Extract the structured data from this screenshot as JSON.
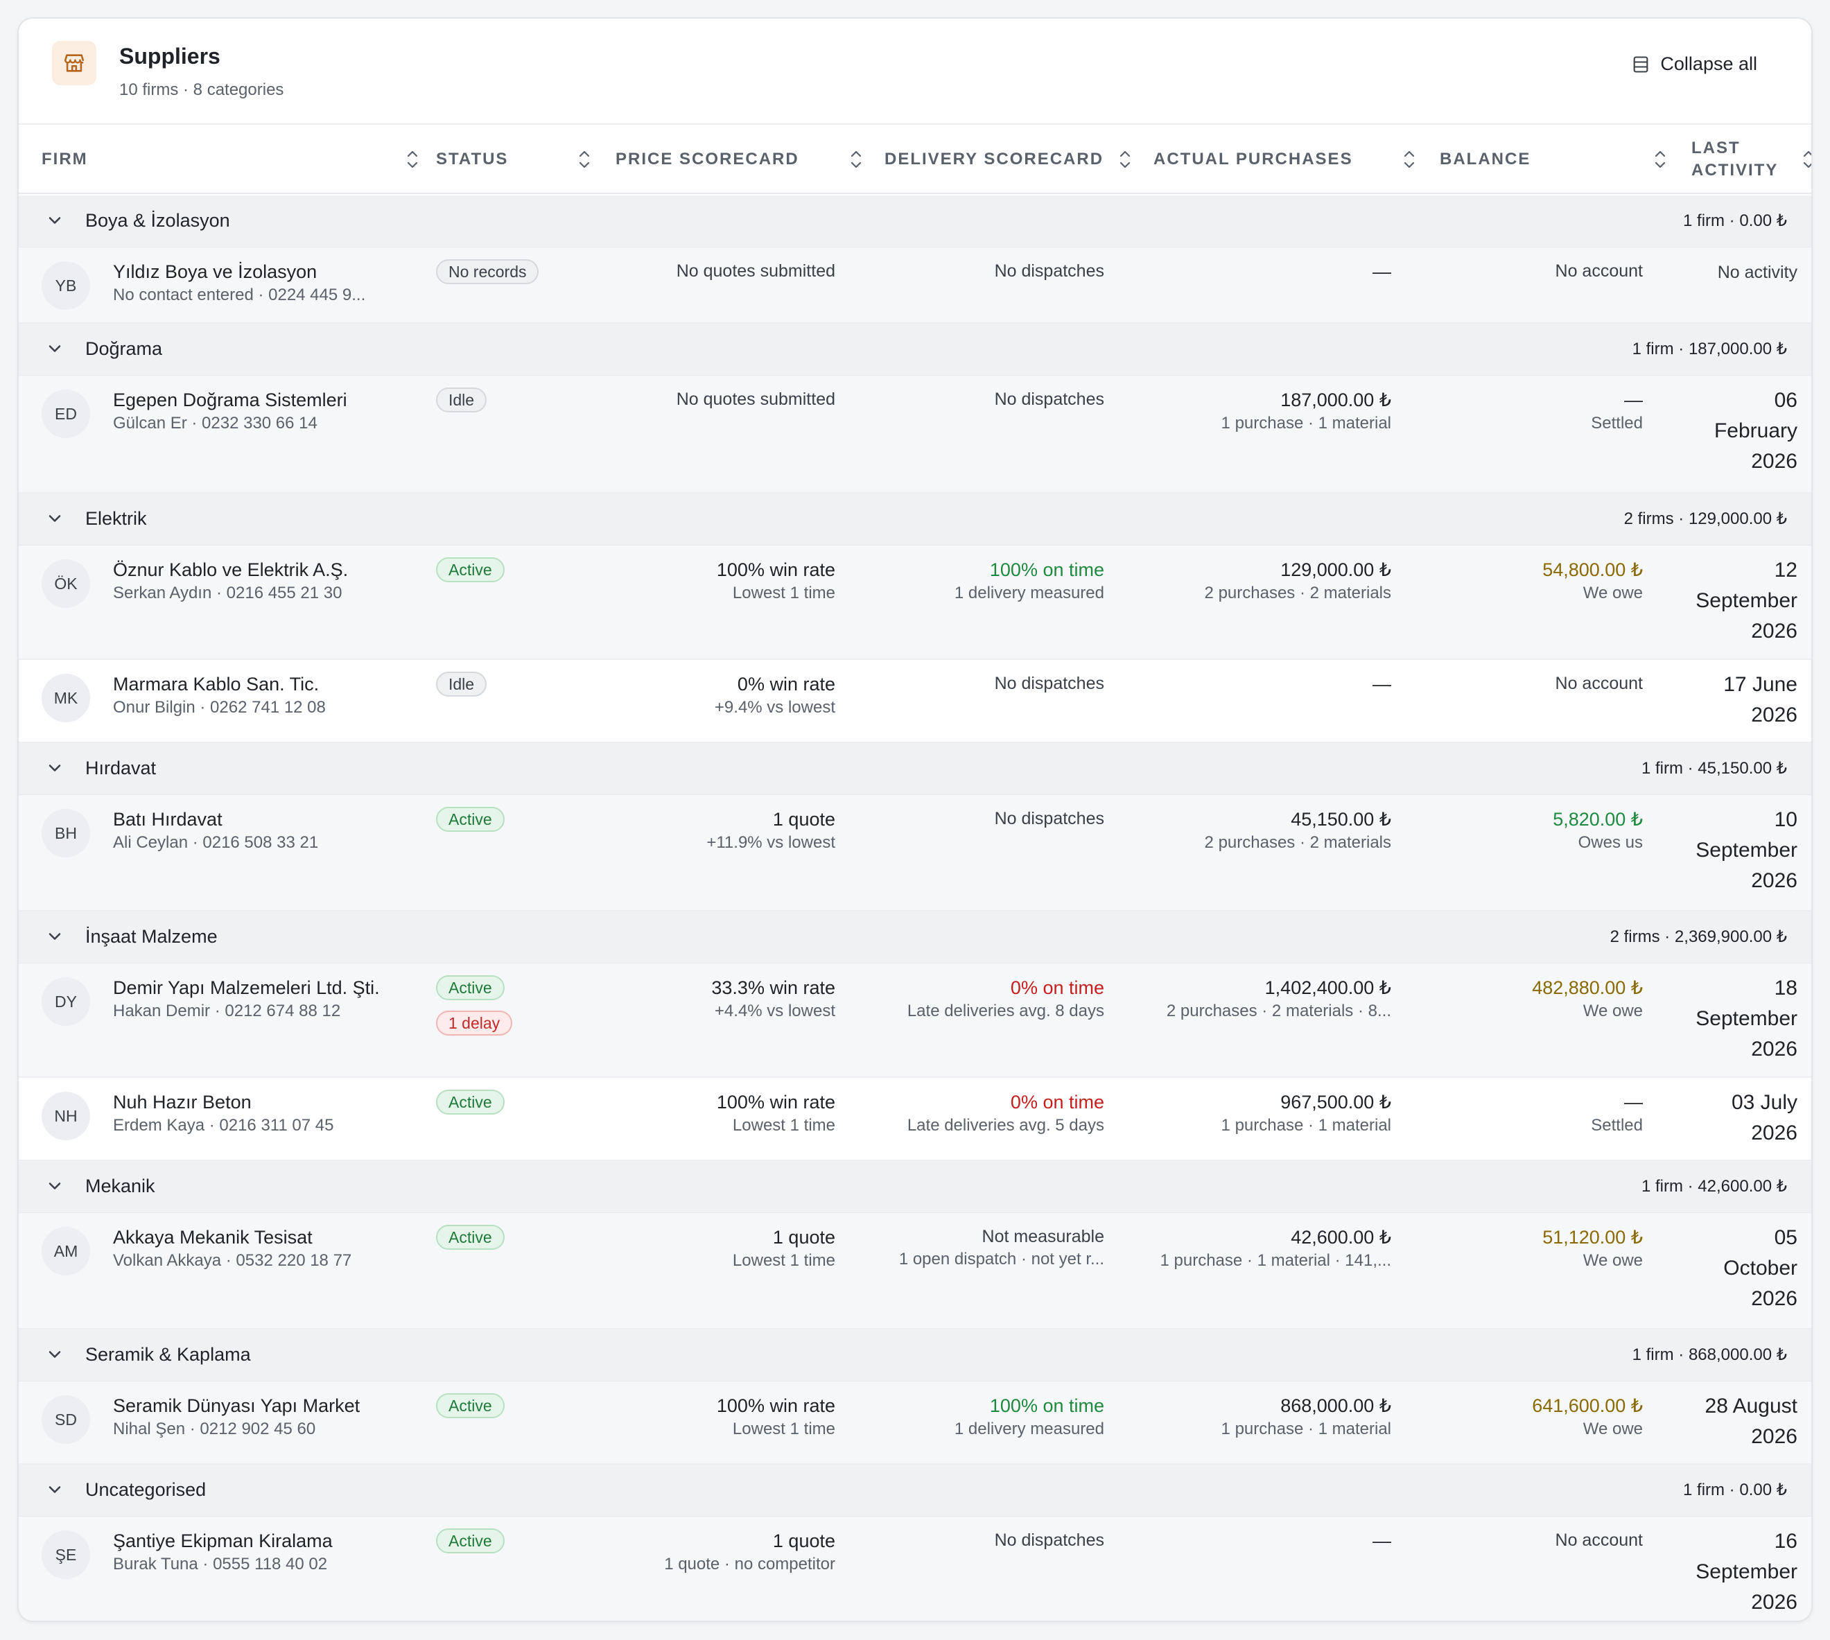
{
  "header": {
    "title": "Suppliers",
    "subtitle": "10 firms · 8 categories",
    "collapse_label": "Collapse all",
    "icon": "store-icon"
  },
  "columns": [
    "FIRM",
    "STATUS",
    "PRICE SCORECARD",
    "DELIVERY SCORECARD",
    "ACTUAL PURCHASES",
    "BALANCE",
    "LAST",
    "ACTIVITY"
  ],
  "groups": [
    {
      "name": "Boya & İzolasyon",
      "summary": "1 firm · 0.00 ₺"
    },
    {
      "name": "Doğrama",
      "summary": "1 firm · 187,000.00 ₺"
    },
    {
      "name": "Elektrik",
      "summary": "2 firms · 129,000.00 ₺"
    },
    {
      "name": "Hırdavat",
      "summary": "1 firm · 45,150.00 ₺"
    },
    {
      "name": "İnşaat Malzeme",
      "summary": "2 firms · 2,369,900.00 ₺"
    },
    {
      "name": "Mekanik",
      "summary": "1 firm · 42,600.00 ₺"
    },
    {
      "name": "Seramik & Kaplama",
      "summary": "1 firm · 868,000.00 ₺"
    },
    {
      "name": "Uncategorised",
      "summary": "1 firm · 0.00 ₺"
    }
  ],
  "rows": [
    {
      "initials": "YB",
      "name": "Yıldız Boya ve İzolasyon",
      "contact": "No contact entered · 0224 445 9...",
      "badges": [
        "No records"
      ],
      "price_main": "No quotes submitted",
      "price_sub": "",
      "deliv_main": "No dispatches",
      "deliv_sub": "",
      "purch_main": "—",
      "purch_sub": "",
      "bal_main": "No account",
      "bal_sub": "",
      "act1": "No activity",
      "act2": "",
      "act3": ""
    },
    {
      "initials": "ED",
      "name": "Egepen Doğrama Sistemleri",
      "contact": "Gülcan Er · 0232 330 66 14",
      "badges": [
        "Idle"
      ],
      "price_main": "No quotes submitted",
      "price_sub": "",
      "deliv_main": "No dispatches",
      "deliv_sub": "",
      "purch_main": "187,000.00 ₺",
      "purch_sub": "1 purchase · 1 material",
      "bal_main": "—",
      "bal_sub": "Settled",
      "act1": "06",
      "act2": "February",
      "act3": "2026"
    },
    {
      "initials": "ÖK",
      "name": "Öznur Kablo ve Elektrik A.Ş.",
      "contact": "Serkan Aydın · 0216 455 21 30",
      "badges": [
        "Active"
      ],
      "price_main": "100% win rate",
      "price_sub": "Lowest 1 time",
      "deliv_main": "100% on time",
      "deliv_sub": "1 delivery measured",
      "purch_main": "129,000.00 ₺",
      "purch_sub": "2 purchases · 2 materials",
      "bal_main": "54,800.00 ₺",
      "bal_sub": "We owe",
      "act1": "12",
      "act2": "September",
      "act3": "2026"
    },
    {
      "initials": "MK",
      "name": "Marmara Kablo San. Tic.",
      "contact": "Onur Bilgin · 0262 741 12 08",
      "badges": [
        "Idle"
      ],
      "price_main": "0% win rate",
      "price_sub": "+9.4% vs lowest",
      "deliv_main": "No dispatches",
      "deliv_sub": "",
      "purch_main": "—",
      "purch_sub": "",
      "bal_main": "No account",
      "bal_sub": "",
      "act1": "17 June",
      "act2": "2026",
      "act3": ""
    },
    {
      "initials": "BH",
      "name": "Batı Hırdavat",
      "contact": "Ali Ceylan · 0216 508 33 21",
      "badges": [
        "Active"
      ],
      "price_main": "1 quote",
      "price_sub": "+11.9% vs lowest",
      "deliv_main": "No dispatches",
      "deliv_sub": "",
      "purch_main": "45,150.00 ₺",
      "purch_sub": "2 purchases · 2 materials",
      "bal_main": "5,820.00 ₺",
      "bal_sub": "Owes us",
      "act1": "10",
      "act2": "September",
      "act3": "2026"
    },
    {
      "initials": "DY",
      "name": "Demir Yapı Malzemeleri Ltd. Şti.",
      "contact": "Hakan Demir · 0212 674 88 12",
      "badges": [
        "Active",
        "1 delay"
      ],
      "price_main": "33.3% win rate",
      "price_sub": "+4.4% vs lowest",
      "deliv_main": "0% on time",
      "deliv_sub": "Late deliveries avg. 8 days",
      "purch_main": "1,402,400.00 ₺",
      "purch_sub": "2 purchases · 2 materials · 8...",
      "bal_main": "482,880.00 ₺",
      "bal_sub": "We owe",
      "act1": "18",
      "act2": "September",
      "act3": "2026"
    },
    {
      "initials": "NH",
      "name": "Nuh Hazır Beton",
      "contact": "Erdem Kaya · 0216 311 07 45",
      "badges": [
        "Active"
      ],
      "price_main": "100% win rate",
      "price_sub": "Lowest 1 time",
      "deliv_main": "0% on time",
      "deliv_sub": "Late deliveries avg. 5 days",
      "purch_main": "967,500.00 ₺",
      "purch_sub": "1 purchase · 1 material",
      "bal_main": "—",
      "bal_sub": "Settled",
      "act1": "03 July",
      "act2": "2026",
      "act3": ""
    },
    {
      "initials": "AM",
      "name": "Akkaya Mekanik Tesisat",
      "contact": "Volkan Akkaya · 0532 220 18 77",
      "badges": [
        "Active"
      ],
      "price_main": "1 quote",
      "price_sub": "Lowest 1 time",
      "deliv_main": "Not measurable",
      "deliv_sub": "1 open dispatch · not yet r...",
      "purch_main": "42,600.00 ₺",
      "purch_sub": "1 purchase · 1 material · 141,...",
      "bal_main": "51,120.00 ₺",
      "bal_sub": "We owe",
      "act1": "05",
      "act2": "October",
      "act3": "2026"
    },
    {
      "initials": "SD",
      "name": "Seramik Dünyası Yapı Market",
      "contact": "Nihal Şen · 0212 902 45 60",
      "badges": [
        "Active"
      ],
      "price_main": "100% win rate",
      "price_sub": "Lowest 1 time",
      "deliv_main": "100% on time",
      "deliv_sub": "1 delivery measured",
      "purch_main": "868,000.00 ₺",
      "purch_sub": "1 purchase · 1 material",
      "bal_main": "641,600.00 ₺",
      "bal_sub": "We owe",
      "act1": "28 August",
      "act2": "2026",
      "act3": ""
    },
    {
      "initials": "ŞE",
      "name": "Şantiye Ekipman Kiralama",
      "contact": "Burak Tuna · 0555 118 40 02",
      "badges": [
        "Active"
      ],
      "price_main": "1 quote",
      "price_sub": "1 quote · no competitor",
      "deliv_main": "No dispatches",
      "deliv_sub": "",
      "purch_main": "—",
      "purch_sub": "",
      "bal_main": "No account",
      "bal_sub": "",
      "act1": "16",
      "act2": "September",
      "act3": "2026"
    }
  ],
  "colors": {
    "green": "#1f8a3f",
    "red": "#c41f1f",
    "amber": "#8a6a00",
    "accent_icon_bg": "#fbeee0"
  }
}
